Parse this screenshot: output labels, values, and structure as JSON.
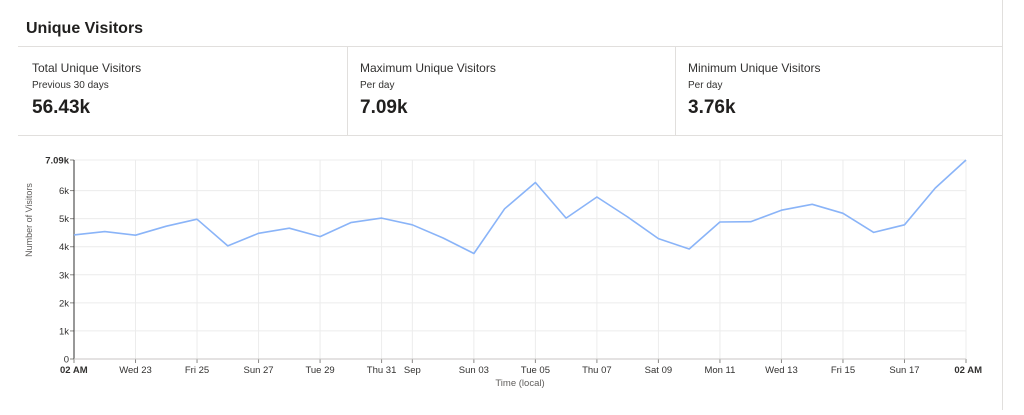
{
  "panel": {
    "title": "Unique Visitors"
  },
  "stats": [
    {
      "label": "Total Unique Visitors",
      "sub": "Previous 30 days",
      "value": "56.43k"
    },
    {
      "label": "Maximum Unique Visitors",
      "sub": "Per day",
      "value": "7.09k"
    },
    {
      "label": "Minimum Unique Visitors",
      "sub": "Per day",
      "value": "3.76k"
    }
  ],
  "chart_data": {
    "type": "line",
    "xlabel": "Time (local)",
    "ylabel": "Number of Visitors",
    "ylim": [
      0,
      7090
    ],
    "y_ticks": [
      {
        "value": 0,
        "label": "0"
      },
      {
        "value": 1000,
        "label": "1k"
      },
      {
        "value": 2000,
        "label": "2k"
      },
      {
        "value": 3000,
        "label": "3k"
      },
      {
        "value": 4000,
        "label": "4k"
      },
      {
        "value": 5000,
        "label": "5k"
      },
      {
        "value": 6000,
        "label": "6k"
      },
      {
        "value": 7090,
        "label": "7.09k",
        "bold": true
      }
    ],
    "x_ticks": [
      {
        "index": 0,
        "label": "02 AM",
        "bold": true,
        "anchor": "start"
      },
      {
        "index": 2,
        "label": "Wed 23"
      },
      {
        "index": 4,
        "label": "Fri 25"
      },
      {
        "index": 6,
        "label": "Sun 27"
      },
      {
        "index": 8,
        "label": "Tue 29"
      },
      {
        "index": 10,
        "label": "Thu 31"
      },
      {
        "index": 11,
        "label": "Sep"
      },
      {
        "index": 13,
        "label": "Sun 03"
      },
      {
        "index": 15,
        "label": "Tue 05"
      },
      {
        "index": 17,
        "label": "Thu 07"
      },
      {
        "index": 19,
        "label": "Sat 09"
      },
      {
        "index": 21,
        "label": "Mon 11"
      },
      {
        "index": 23,
        "label": "Wed 13"
      },
      {
        "index": 25,
        "label": "Fri 15"
      },
      {
        "index": 27,
        "label": "Sun 17"
      },
      {
        "index": 29,
        "label": "02 AM",
        "bold": true,
        "anchor": "end"
      }
    ],
    "series": [
      {
        "values": [
          4420,
          4540,
          4410,
          4730,
          4980,
          4030,
          4480,
          4660,
          4360,
          4860,
          5020,
          4780,
          4310,
          3760,
          5350,
          6290,
          5020,
          5770,
          5060,
          4290,
          3920,
          4880,
          4890,
          5300,
          5510,
          5190,
          4510,
          4780,
          6090,
          7090
        ],
        "color": "#8ab4f8"
      }
    ],
    "grid": true
  }
}
